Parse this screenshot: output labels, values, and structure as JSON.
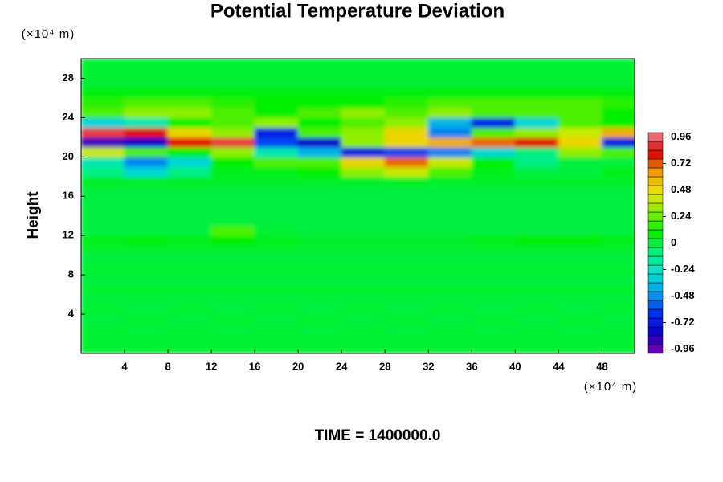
{
  "chart_data": {
    "type": "heatmap",
    "title": "Potential Temperature Deviation",
    "x_unit_label": "(×10⁴ m)",
    "y_unit_label": "(×10⁴ m)",
    "y_label": "Height",
    "annotation": "TIME = 1400000.0",
    "xlim": [
      0,
      51
    ],
    "ylim": [
      0,
      30
    ],
    "xticks": [
      4,
      8,
      12,
      16,
      20,
      24,
      28,
      32,
      36,
      40,
      44,
      48
    ],
    "yticks": [
      4,
      8,
      12,
      16,
      20,
      24,
      28
    ],
    "clim": [
      -1,
      1
    ],
    "cticks": [
      -0.96,
      -0.72,
      -0.48,
      -0.24,
      0,
      0.24,
      0.48,
      0.72,
      0.96
    ],
    "colormap": [
      "#7a00b0",
      "#1000c8",
      "#0030f0",
      "#00a0f0",
      "#00e0d0",
      "#00f080",
      "#00f000",
      "#80f000",
      "#e8e800",
      "#f0a000",
      "#e00000",
      "#f08890"
    ],
    "x": [
      2,
      6,
      10,
      14,
      18,
      22,
      26,
      30,
      34,
      38,
      42,
      46,
      50
    ],
    "y": [
      0.5,
      1.5,
      2.5,
      3.5,
      4.5,
      5.5,
      6.5,
      7.5,
      8.5,
      9.5,
      10.5,
      11.5,
      12.5,
      13.5,
      14.5,
      15.5,
      16.5,
      17.5,
      18.5,
      19.5,
      20.5,
      21.5,
      22.5,
      23.5,
      24.5,
      25.5,
      26.5,
      27.5,
      28.5,
      29.5
    ],
    "z": [
      [
        0.02,
        0.02,
        0.02,
        0.02,
        0.02,
        0.02,
        0.02,
        0.02,
        0.02,
        0.02,
        0.02,
        0.02,
        0.02
      ],
      [
        0.02,
        0.02,
        0.02,
        0.02,
        0.02,
        0.02,
        0.02,
        0.02,
        0.02,
        0.02,
        0.02,
        0.02,
        0.02
      ],
      [
        0.02,
        0,
        0.02,
        0,
        0.02,
        0,
        0.02,
        0,
        0.02,
        0,
        0.02,
        0,
        0.02
      ],
      [
        0,
        0.02,
        0,
        0.02,
        0,
        0.02,
        0,
        0.02,
        0,
        0.02,
        0,
        0.02,
        0
      ],
      [
        0.02,
        0,
        0.02,
        0,
        0.02,
        0,
        0.02,
        0,
        0.02,
        0,
        0.02,
        0,
        0.02
      ],
      [
        0,
        0,
        0,
        0,
        0,
        0,
        0,
        0,
        0,
        0,
        0,
        0,
        0
      ],
      [
        0.02,
        0.02,
        0.02,
        0.02,
        0.02,
        0.02,
        0.02,
        0.02,
        0.02,
        0.02,
        0.02,
        0.02,
        0.02
      ],
      [
        0,
        0,
        0,
        0,
        0,
        0,
        0,
        0,
        0,
        0,
        0,
        0,
        0
      ],
      [
        0.02,
        0.02,
        0.02,
        0.02,
        0.02,
        0.02,
        0.02,
        0.02,
        0.02,
        0.02,
        0.02,
        0.02,
        0.02
      ],
      [
        0,
        0,
        0,
        0,
        0,
        0,
        0,
        0,
        0,
        0,
        0,
        0,
        0
      ],
      [
        0.02,
        0.02,
        0.02,
        0.02,
        0.02,
        0.02,
        0.02,
        0.02,
        0.02,
        0.02,
        0.02,
        0.02,
        0.02
      ],
      [
        0.05,
        0.08,
        0.05,
        0.1,
        0.05,
        0.03,
        0.03,
        0.03,
        0.03,
        0.05,
        0.1,
        0.1,
        0.05
      ],
      [
        0,
        0,
        0,
        0.2,
        0.02,
        0,
        0,
        0,
        0,
        0,
        0,
        0,
        0
      ],
      [
        0,
        0,
        0,
        0,
        0,
        0,
        0,
        0,
        0,
        0,
        0,
        0,
        0
      ],
      [
        0,
        0,
        0,
        0,
        0,
        0,
        0,
        0,
        0,
        0,
        0,
        0,
        0
      ],
      [
        0,
        0,
        0,
        0,
        0,
        0,
        0,
        0,
        0,
        0,
        0,
        0,
        0
      ],
      [
        0,
        0,
        0,
        0,
        0,
        0,
        0,
        0,
        0,
        0,
        0,
        0,
        0
      ],
      [
        0.03,
        0.03,
        0.03,
        0.03,
        0.03,
        0.03,
        0.03,
        0.03,
        0.03,
        0.03,
        0.03,
        0.03,
        0.03
      ],
      [
        -0.1,
        -0.3,
        -0.1,
        0.05,
        0.05,
        0.1,
        0.3,
        0.4,
        0.2,
        0.05,
        0,
        0,
        0.05
      ],
      [
        -0.2,
        -0.5,
        -0.3,
        0.1,
        0.2,
        0.2,
        0.5,
        0.7,
        0.4,
        0.1,
        -0.1,
        0,
        0
      ],
      [
        0.4,
        0.2,
        0.1,
        0.3,
        -0.2,
        -0.4,
        -0.7,
        -0.6,
        -0.5,
        -0.3,
        -0.1,
        0.3,
        0.2
      ],
      [
        -0.9,
        -0.8,
        0.8,
        0.9,
        -0.6,
        -0.8,
        0.3,
        0.5,
        0.6,
        0.7,
        0.8,
        0.5,
        -0.7
      ],
      [
        0.9,
        0.8,
        0.5,
        0.3,
        -0.7,
        0.2,
        0.3,
        0.5,
        -0.5,
        0.2,
        0.3,
        0.4,
        0.6
      ],
      [
        -0.3,
        -0.2,
        0.1,
        0.2,
        0.3,
        0.1,
        0.2,
        0.3,
        -0.4,
        -0.7,
        -0.3,
        0.2,
        0.1
      ],
      [
        0.2,
        0.3,
        0.3,
        0.2,
        0.1,
        0.2,
        0.3,
        0.2,
        0.3,
        0.2,
        0.2,
        0.2,
        0.1
      ],
      [
        0.15,
        0.2,
        0.2,
        0.15,
        0.1,
        0.1,
        0.1,
        0.15,
        0.2,
        0.2,
        0.2,
        0.2,
        0.15
      ],
      [
        0.08,
        0.08,
        0.08,
        0.08,
        0.08,
        0.08,
        0.08,
        0.08,
        0.08,
        0.08,
        0.08,
        0.08,
        0.08
      ],
      [
        0.02,
        0.02,
        0.02,
        0.02,
        0.02,
        0.02,
        0.02,
        0.02,
        0.02,
        0.02,
        0.02,
        0.02,
        0.02
      ],
      [
        0.02,
        0.02,
        0.02,
        0.02,
        0.02,
        0.02,
        0.02,
        0.02,
        0.02,
        0.02,
        0.02,
        0.02,
        0.02
      ],
      [
        0.02,
        0.02,
        0.02,
        0.02,
        0.02,
        0.02,
        0.02,
        0.02,
        0.02,
        0.02,
        0.02,
        0.02,
        0.02
      ]
    ]
  }
}
